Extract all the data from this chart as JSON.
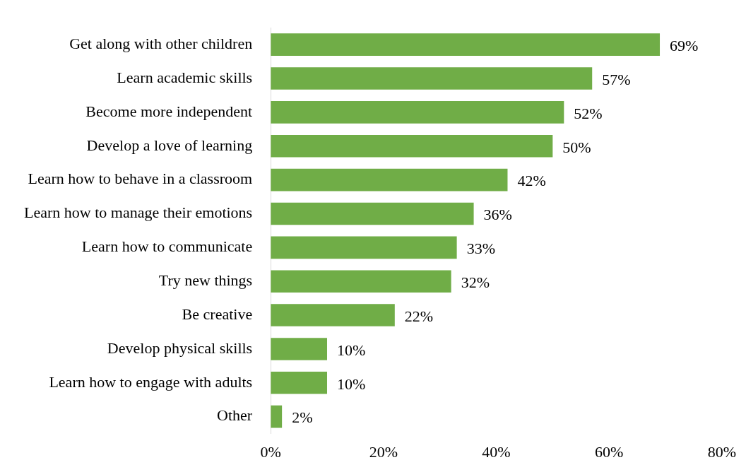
{
  "chart_data": {
    "type": "bar",
    "orientation": "horizontal",
    "categories": [
      "Get along with other children",
      "Learn academic skills",
      "Become more independent",
      "Develop a love of learning",
      "Learn how to behave in a classroom",
      "Learn how to manage their emotions",
      "Learn how to communicate",
      "Try new things",
      "Be creative",
      "Develop physical skills",
      "Learn how to engage with adults",
      "Other"
    ],
    "values": [
      69,
      57,
      52,
      50,
      42,
      36,
      33,
      32,
      22,
      10,
      10,
      2
    ],
    "value_labels": [
      "69%",
      "57%",
      "52%",
      "50%",
      "42%",
      "36%",
      "33%",
      "32%",
      "22%",
      "10%",
      "10%",
      "2%"
    ],
    "color": "#70ad47",
    "xlim": [
      0,
      80
    ],
    "xticks": [
      {
        "value": 0,
        "label": "0%"
      },
      {
        "value": 20,
        "label": "20%"
      },
      {
        "value": 40,
        "label": "40%"
      },
      {
        "value": 60,
        "label": "60%"
      },
      {
        "value": 80,
        "label": "80%"
      }
    ],
    "grid": false,
    "legend": false
  }
}
